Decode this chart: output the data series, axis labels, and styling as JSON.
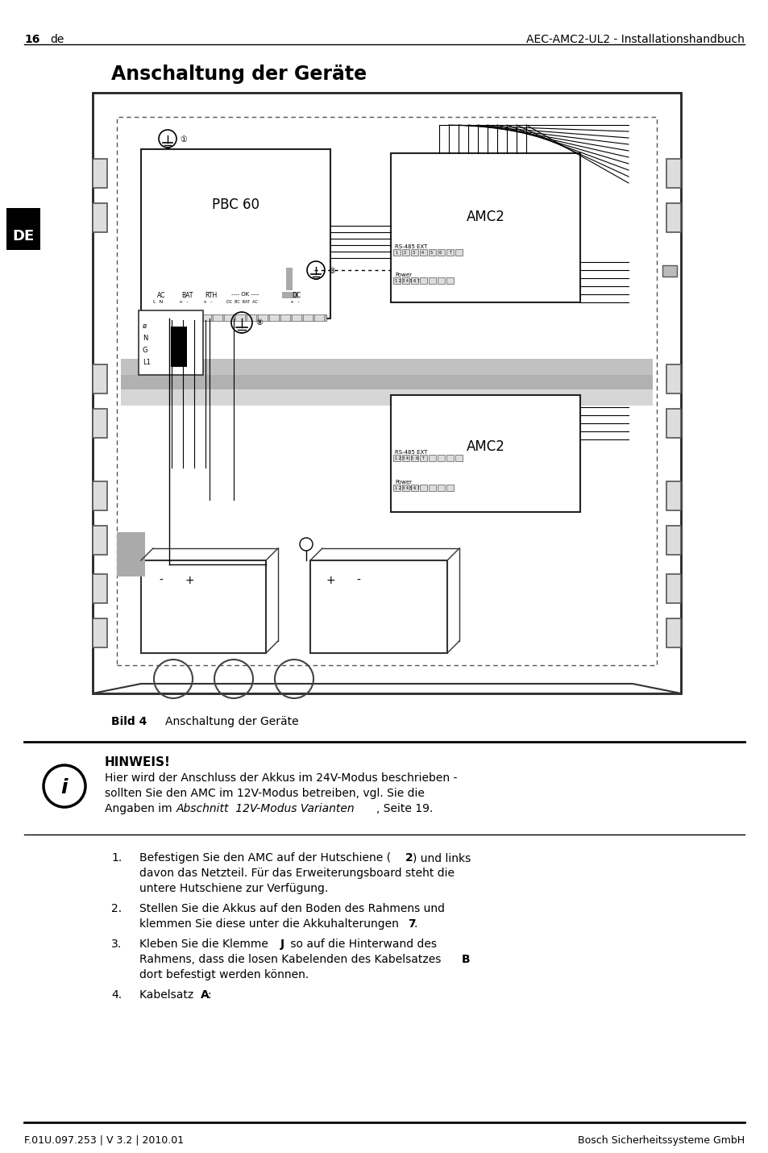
{
  "page_num": "16",
  "page_lang": "de",
  "header_right": "AEC-AMC2-UL2 - Installationshandbuch",
  "footer_left": "F.01U.097.253 | V 3.2 | 2010.01",
  "footer_right": "Bosch Sicherheitssysteme GmbH",
  "title": "Anschaltung der Geräte",
  "fig_caption_bold": "Bild 4",
  "fig_caption_normal": "Anschaltung der Geräte",
  "note_title": "HINWEIS!",
  "bg_color": "#ffffff",
  "text_color": "#000000"
}
